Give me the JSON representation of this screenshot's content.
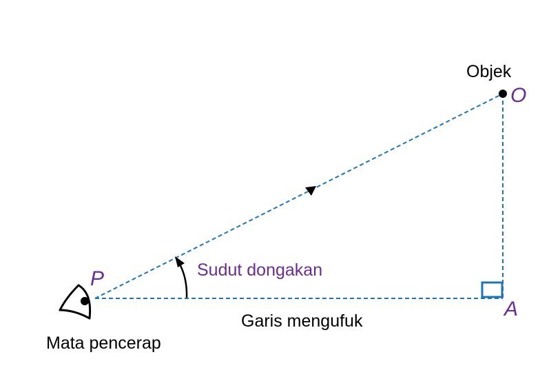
{
  "labels": {
    "objek": "Objek",
    "point_o": "O",
    "point_p": "P",
    "point_a": "A",
    "sudut_dongakan": "Sudut dongakan",
    "garis_mengufuk": "Garis mengufuk",
    "mata_pencerap": "Mata pencerap"
  },
  "colors": {
    "line": "#1f74b8",
    "point_label": "#6a2d91",
    "text": "#000000",
    "right_angle_marker": "#1f74b8"
  },
  "icons": {
    "observer": "eye-icon",
    "object": "dot-icon",
    "direction": "triangle-arrow-icon",
    "angle": "curved-arrow-icon"
  }
}
